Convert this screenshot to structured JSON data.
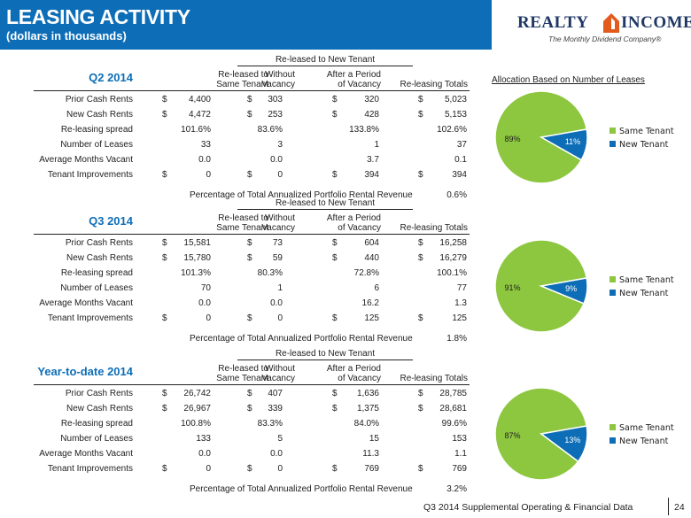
{
  "header": {
    "title": "LEASING ACTIVITY",
    "subtitle": "(dollars in thousands)",
    "accent_color": "#0d6eb7"
  },
  "logo": {
    "word_left": "REALTY",
    "word_right": "INCOME",
    "tagline": "The Monthly Dividend Company®",
    "mark_color": "#e35a1d"
  },
  "columns": {
    "group_label": "Re-leased to New Tenant",
    "same_tenant": [
      "Re-leased to",
      "Same Tenant"
    ],
    "without_vacancy": [
      "Without",
      "Vacancy"
    ],
    "after_period": [
      "After a Period",
      "of Vacancy"
    ],
    "totals": "Re-leasing Totals"
  },
  "percentage_label": "Percentage of Total Annualized Portfolio Rental Revenue",
  "allocation_title": "Allocation Based on Number of Leases",
  "legend": {
    "same": "Same Tenant",
    "new": "New Tenant",
    "same_color": "#8dc63f",
    "new_color": "#0d6eb7"
  },
  "sections": [
    {
      "title": "Q2 2014",
      "rows": [
        {
          "label": "Prior Cash Rents",
          "cells": [
            [
              "$",
              "4,400"
            ],
            [
              "$",
              "303"
            ],
            [
              "$",
              "320"
            ],
            [
              "$",
              "5,023"
            ]
          ]
        },
        {
          "label": "New Cash Rents",
          "cells": [
            [
              "$",
              "4,472"
            ],
            [
              "$",
              "253"
            ],
            [
              "$",
              "428"
            ],
            [
              "$",
              "5,153"
            ]
          ]
        },
        {
          "label": "Re-leasing spread",
          "cells": [
            [
              "",
              "101.6%"
            ],
            [
              "",
              "83.6%"
            ],
            [
              "",
              "133.8%"
            ],
            [
              "",
              "102.6%"
            ]
          ]
        },
        {
          "label": "Number of Leases",
          "cells": [
            [
              "",
              "33"
            ],
            [
              "",
              "3"
            ],
            [
              "",
              "1"
            ],
            [
              "",
              "37"
            ]
          ]
        },
        {
          "label": "Average Months Vacant",
          "cells": [
            [
              "",
              "0.0"
            ],
            [
              "",
              "0.0"
            ],
            [
              "",
              "3.7"
            ],
            [
              "",
              "0.1"
            ]
          ]
        },
        {
          "label": "Tenant Improvements",
          "cells": [
            [
              "$",
              "0"
            ],
            [
              "$",
              "0"
            ],
            [
              "$",
              "394"
            ],
            [
              "$",
              "394"
            ]
          ]
        }
      ],
      "percentage": "0.6%",
      "pie": {
        "same_pct": 89,
        "new_pct": 11,
        "same_label": "89%",
        "new_label": "11%"
      }
    },
    {
      "title": "Q3 2014",
      "rows": [
        {
          "label": "Prior Cash Rents",
          "cells": [
            [
              "$",
              "15,581"
            ],
            [
              "$",
              "73"
            ],
            [
              "$",
              "604"
            ],
            [
              "$",
              "16,258"
            ]
          ]
        },
        {
          "label": "New Cash Rents",
          "cells": [
            [
              "$",
              "15,780"
            ],
            [
              "$",
              "59"
            ],
            [
              "$",
              "440"
            ],
            [
              "$",
              "16,279"
            ]
          ]
        },
        {
          "label": "Re-leasing spread",
          "cells": [
            [
              "",
              "101.3%"
            ],
            [
              "",
              "80.3%"
            ],
            [
              "",
              "72.8%"
            ],
            [
              "",
              "100.1%"
            ]
          ]
        },
        {
          "label": "Number of Leases",
          "cells": [
            [
              "",
              "70"
            ],
            [
              "",
              "1"
            ],
            [
              "",
              "6"
            ],
            [
              "",
              "77"
            ]
          ]
        },
        {
          "label": "Average Months Vacant",
          "cells": [
            [
              "",
              "0.0"
            ],
            [
              "",
              "0.0"
            ],
            [
              "",
              "16.2"
            ],
            [
              "",
              "1.3"
            ]
          ]
        },
        {
          "label": "Tenant Improvements",
          "cells": [
            [
              "$",
              "0"
            ],
            [
              "$",
              "0"
            ],
            [
              "$",
              "125"
            ],
            [
              "$",
              "125"
            ]
          ]
        }
      ],
      "percentage": "1.8%",
      "pie": {
        "same_pct": 91,
        "new_pct": 9,
        "same_label": "91%",
        "new_label": "9%"
      }
    },
    {
      "title": "Year-to-date 2014",
      "rows": [
        {
          "label": "Prior Cash Rents",
          "cells": [
            [
              "$",
              "26,742"
            ],
            [
              "$",
              "407"
            ],
            [
              "$",
              "1,636"
            ],
            [
              "$",
              "28,785"
            ]
          ]
        },
        {
          "label": "New Cash Rents",
          "cells": [
            [
              "$",
              "26,967"
            ],
            [
              "$",
              "339"
            ],
            [
              "$",
              "1,375"
            ],
            [
              "$",
              "28,681"
            ]
          ]
        },
        {
          "label": "Re-leasing spread",
          "cells": [
            [
              "",
              "100.8%"
            ],
            [
              "",
              "83.3%"
            ],
            [
              "",
              "84.0%"
            ],
            [
              "",
              "99.6%"
            ]
          ]
        },
        {
          "label": "Number of Leases",
          "cells": [
            [
              "",
              "133"
            ],
            [
              "",
              "5"
            ],
            [
              "",
              "15"
            ],
            [
              "",
              "153"
            ]
          ]
        },
        {
          "label": "Average Months Vacant",
          "cells": [
            [
              "",
              "0.0"
            ],
            [
              "",
              "0.0"
            ],
            [
              "",
              "11.3"
            ],
            [
              "",
              "1.1"
            ]
          ]
        },
        {
          "label": "Tenant Improvements",
          "cells": [
            [
              "$",
              "0"
            ],
            [
              "$",
              "0"
            ],
            [
              "$",
              "769"
            ],
            [
              "$",
              "769"
            ]
          ]
        }
      ],
      "percentage": "3.2%",
      "pie": {
        "same_pct": 87,
        "new_pct": 13,
        "same_label": "87%",
        "new_label": "13%"
      }
    }
  ],
  "footer": {
    "text": "Q3 2014 Supplemental Operating & Financial Data",
    "page": "24"
  }
}
